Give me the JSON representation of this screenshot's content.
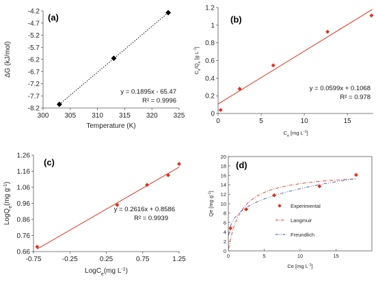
{
  "chart_data": [
    {
      "panel": "(a)",
      "type": "scatter",
      "xlabel": "Temperature (K)",
      "ylabel": "ΔG (kJ/mol)",
      "xlim": [
        300,
        325
      ],
      "ylim": [
        -8.2,
        -4.2
      ],
      "xticks": [
        "300",
        "305",
        "310",
        "315",
        "320",
        "325"
      ],
      "yticks": [
        "-4.2",
        "-4.7",
        "-5.2",
        "-5.7",
        "-6.2",
        "-6.7",
        "-7.2",
        "-7.7",
        "-8.2"
      ],
      "x": [
        303,
        313,
        323
      ],
      "y": [
        -8.05,
        -6.15,
        -4.27
      ],
      "fit": {
        "slope": 0.1895,
        "intercept": -65.47,
        "style": "dotted",
        "color": "#000000"
      },
      "equation": "y = 0.1895x - 65.47",
      "r2": "R² = 0.9996",
      "marker_color": "#000000"
    },
    {
      "panel": "(b)",
      "type": "scatter",
      "xlabel": "C",
      "xlabel_sub": "e",
      "xlabel_unit": "[mg L",
      "xlabel_sup": "-1",
      "xlabel_end": "]",
      "ylabel": "C/Q (g L)",
      "ylabel_parts": [
        "C",
        "e",
        "/Q",
        "e",
        " [g L",
        "-1",
        "]"
      ],
      "xlim": [
        0,
        18
      ],
      "ylim": [
        0,
        1.2
      ],
      "xticks": [
        "0",
        "5",
        "10",
        "15"
      ],
      "yticks": [
        "0",
        "0.2",
        "0.4",
        "0.6",
        "0.8",
        "1",
        "1.2"
      ],
      "x": [
        0.3,
        2.5,
        6.4,
        12.7,
        17.8
      ],
      "y": [
        0.04,
        0.28,
        0.545,
        0.925,
        1.11
      ],
      "fit": {
        "slope": 0.0599,
        "intercept": 0.1068,
        "style": "solid",
        "color": "#e0301e"
      },
      "equation": "y = 0.0599x + 0.1068",
      "r2": "R² = 0.978",
      "marker_color": "#e0301e"
    },
    {
      "panel": "(c)",
      "type": "scatter",
      "xlabel_parts": [
        "LogC",
        "e",
        "(mg L",
        "-1",
        ")"
      ],
      "ylabel_parts": [
        "LogQ",
        "e",
        "(mg g",
        "-1",
        ")"
      ],
      "xlim": [
        -0.75,
        1.25
      ],
      "ylim": [
        0.66,
        1.26
      ],
      "xticks": [
        "-0.75",
        "-0.25",
        "0.25",
        "0.75",
        "1.25"
      ],
      "yticks": [
        "0.66",
        "0.76",
        "0.86",
        "0.96",
        "1.06",
        "1.16",
        "1.26"
      ],
      "x": [
        -0.7,
        0.4,
        0.81,
        1.1,
        1.25
      ],
      "y": [
        0.69,
        0.95,
        1.075,
        1.135,
        1.205
      ],
      "fit": {
        "slope": 0.2616,
        "intercept": 0.8586,
        "style": "solid",
        "color": "#e0301e"
      },
      "equation": "y = 0.2616x + 0.8586",
      "r2": "R² = 0.9939",
      "marker_color": "#e0301e"
    },
    {
      "panel": "(d)",
      "type": "line",
      "xlabel_parts": [
        "Ce [mg L",
        "-1",
        "]"
      ],
      "ylabel_parts": [
        "Qe [mg g",
        "-1",
        "]"
      ],
      "xlim": [
        0,
        20
      ],
      "ylim": [
        0,
        20
      ],
      "xticks": [
        "0",
        "5",
        "10",
        "15"
      ],
      "yticks": [
        "0",
        "2",
        "4",
        "6",
        "8",
        "10",
        "12",
        "14",
        "16",
        "18",
        "20"
      ],
      "series": [
        {
          "name": "Experimental",
          "kind": "points",
          "color": "#e0301e",
          "x": [
            0.3,
            2.5,
            6.4,
            12.7,
            17.8
          ],
          "y": [
            4.8,
            8.8,
            11.8,
            13.7,
            16.1
          ]
        },
        {
          "name": "Langmuir",
          "kind": "dashdot",
          "color": "#e0301e",
          "model": {
            "qmax": 16.8,
            "kl": 0.56
          }
        },
        {
          "name": "Freundlich",
          "kind": "dashdotdot",
          "color": "#3a4fb5",
          "model": {
            "kf": 7.22,
            "n": 0.2616
          }
        }
      ],
      "legend_position": "center-right"
    }
  ]
}
